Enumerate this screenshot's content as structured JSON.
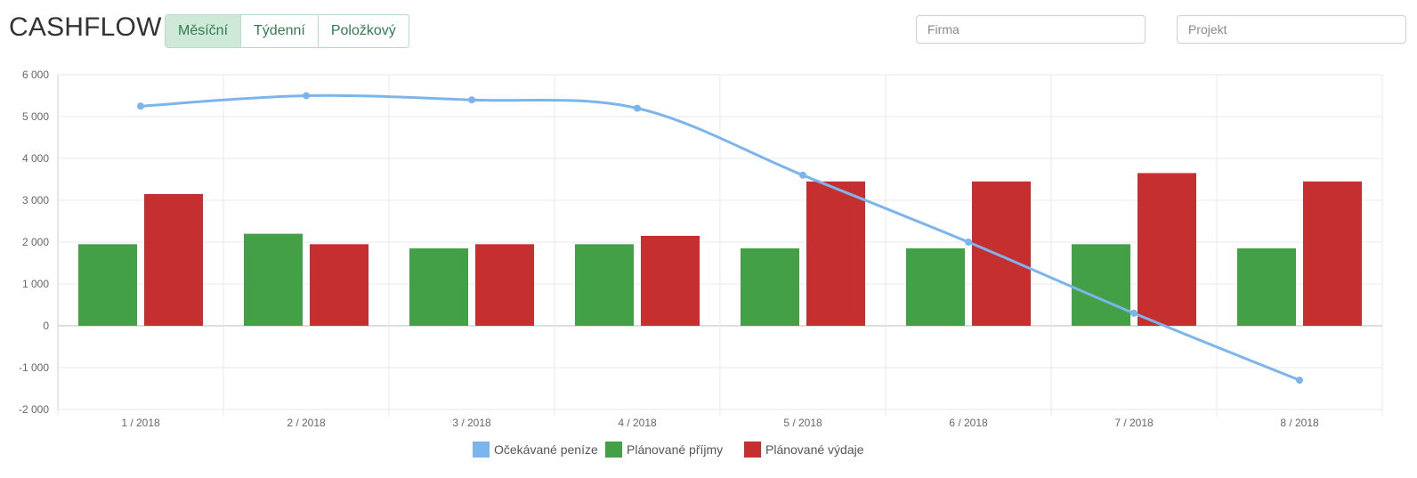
{
  "header": {
    "title": "CASHFLOW",
    "tabs": [
      {
        "label": "Měsíční",
        "active": true
      },
      {
        "label": "Týdenní",
        "active": false
      },
      {
        "label": "Položkový",
        "active": false
      }
    ]
  },
  "filters": {
    "firma_placeholder": "Firma",
    "projekt_placeholder": "Projekt"
  },
  "chart_data": {
    "type": "bar",
    "categories": [
      "1 / 2018",
      "2 / 2018",
      "3 / 2018",
      "4 / 2018",
      "5 / 2018",
      "6 / 2018",
      "7 / 2018",
      "8 / 2018"
    ],
    "series": [
      {
        "name": "Očekávané peníze",
        "type": "line",
        "color": "#7cb5ec",
        "values": [
          5250,
          5500,
          5400,
          5200,
          3600,
          2000,
          300,
          -1300
        ]
      },
      {
        "name": "Plánované příjmy",
        "type": "bar",
        "color": "#43a047",
        "values": [
          1950,
          2200,
          1850,
          1950,
          1850,
          1850,
          1950,
          1850
        ]
      },
      {
        "name": "Plánované výdaje",
        "type": "bar",
        "color": "#c62f2f",
        "values": [
          3150,
          1950,
          1950,
          2150,
          3450,
          3450,
          3650,
          3450
        ]
      }
    ],
    "ylim": [
      -2000,
      6000
    ],
    "yticks": [
      6000,
      5000,
      4000,
      3000,
      2000,
      1000,
      0,
      -1000,
      -2000
    ],
    "ytick_labels": [
      "6 000",
      "5 000",
      "4 000",
      "3 000",
      "2 000",
      "1 000",
      "0",
      "-1 000",
      "-2 000"
    ],
    "grid": true,
    "legend_position": "bottom-center"
  }
}
